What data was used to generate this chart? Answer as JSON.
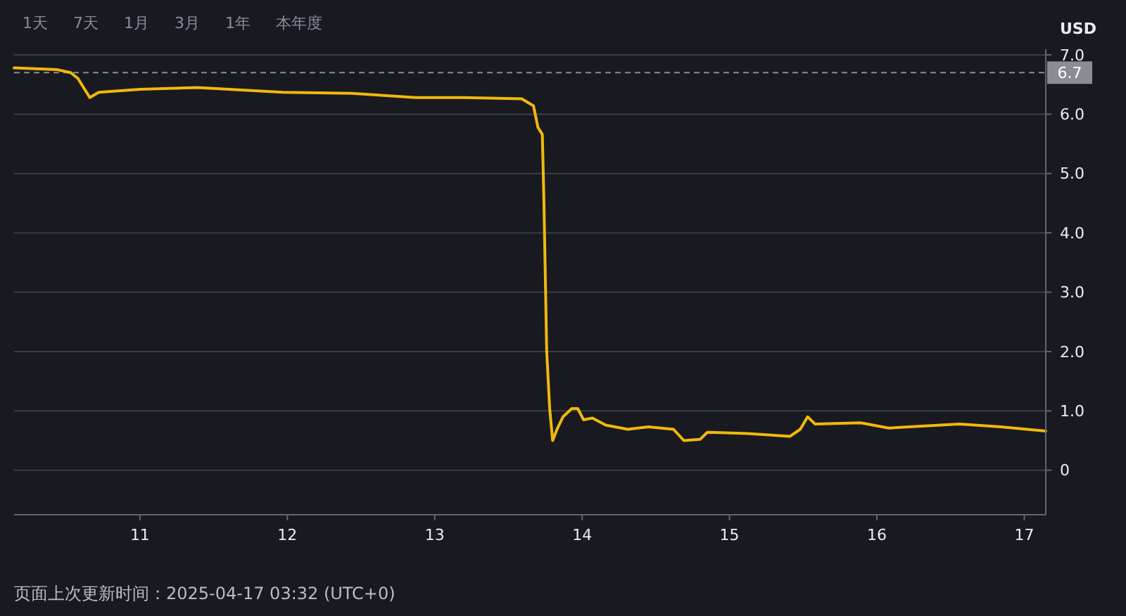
{
  "chart_data": {
    "type": "line",
    "ylabel": "USD",
    "x": [
      "2025-04-10T03:30",
      "2025-04-10T10:34",
      "2025-04-10T12:43",
      "2025-04-10T13:55",
      "2025-04-10T15:50",
      "2025-04-10T17:17",
      "2025-04-11T00:00",
      "2025-04-11T09:22",
      "2025-04-11T23:17",
      "2025-04-12T10:34",
      "2025-04-12T20:53",
      "2025-04-13T04:48",
      "2025-04-13T14:10",
      "2025-04-13T16:05",
      "2025-04-13T16:48",
      "2025-04-13T17:31",
      "2025-04-13T17:46",
      "2025-04-13T18:14",
      "2025-04-13T18:43",
      "2025-04-13T19:12",
      "2025-04-13T19:55",
      "2025-04-13T20:53",
      "2025-04-13T22:19",
      "2025-04-13T23:17",
      "2025-04-14T00:14",
      "2025-04-14T01:41",
      "2025-04-14T03:50",
      "2025-04-14T07:26",
      "2025-04-14T10:48",
      "2025-04-14T14:53",
      "2025-04-14T16:34",
      "2025-04-14T19:12",
      "2025-04-14T20:24",
      "2025-04-15T02:53",
      "2025-04-15T09:50",
      "2025-04-15T11:31",
      "2025-04-15T12:43",
      "2025-04-15T13:55",
      "2025-04-15T21:22",
      "2025-04-16T01:55",
      "2025-04-16T13:26",
      "2025-04-16T20:10",
      "2025-04-17T03:30"
    ],
    "series": [
      {
        "color": "#f0b90b",
        "values": [
          6.78,
          6.75,
          6.7,
          6.6,
          6.28,
          6.37,
          6.42,
          6.45,
          6.37,
          6.35,
          6.28,
          6.28,
          6.26,
          6.14,
          5.78,
          5.66,
          4.6,
          2.0,
          1.04,
          0.5,
          0.69,
          0.9,
          1.04,
          1.04,
          0.85,
          0.88,
          0.76,
          0.69,
          0.73,
          0.69,
          0.5,
          0.52,
          0.64,
          0.62,
          0.57,
          0.69,
          0.9,
          0.78,
          0.8,
          0.71,
          0.78,
          0.73,
          0.66
        ]
      }
    ],
    "xlim": [
      "2025-04-10T03:30",
      "2025-04-17T03:30"
    ],
    "xticks": [
      {
        "value": "2025-04-11",
        "label": "11"
      },
      {
        "value": "2025-04-12",
        "label": "12"
      },
      {
        "value": "2025-04-13",
        "label": "13"
      },
      {
        "value": "2025-04-14",
        "label": "14"
      },
      {
        "value": "2025-04-15",
        "label": "15"
      },
      {
        "value": "2025-04-16",
        "label": "16"
      },
      {
        "value": "2025-04-17",
        "label": "17"
      }
    ],
    "ylim": [
      -0.75,
      7.0
    ],
    "yticks": [
      0,
      {
        "value": 1,
        "label": "1.0"
      },
      {
        "value": 2,
        "label": "2.0"
      },
      {
        "value": 3,
        "label": "3.0"
      },
      {
        "value": 4,
        "label": "4.0"
      },
      {
        "value": 5,
        "label": "5.0"
      },
      {
        "value": 6,
        "label": "6.0"
      },
      {
        "value": 7,
        "label": "7.0"
      }
    ],
    "grid": "y",
    "ref_lines": [
      {
        "axis": "y",
        "value": 6.7,
        "label": "6.7",
        "color": "#8a8d93",
        "line_style": "dashed"
      }
    ],
    "annotations": [
      "1天",
      "7天",
      "1月",
      "3月",
      "1年",
      "本年度",
      "页面上次更新时间：2025-04-17 03:32 (UTC+0)"
    ]
  }
}
